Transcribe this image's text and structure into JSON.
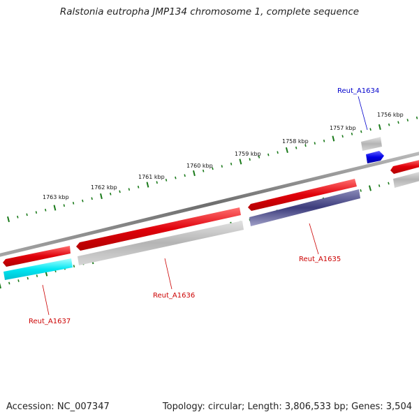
{
  "title": "Ralstonia eutropha JMP134 chromosome 1, complete sequence",
  "footer": {
    "accession": "Accession: NC_007347",
    "summary": "Topology: circular; Length: 3,806,533 bp; Genes: 3,504"
  },
  "scale_labels": [
    "1756 kbp",
    "1757 kbp",
    "1758 kbp",
    "1759 kbp",
    "1760 kbp",
    "1761 kbp",
    "1762 kbp",
    "1763 kbp"
  ],
  "gene_labels": [
    {
      "name": "reut-a1634-label",
      "text": "Reut_A1634",
      "color": "#0000cc"
    },
    {
      "name": "reut-a1635-label",
      "text": "Reut_A1635",
      "color": "#cc0000"
    },
    {
      "name": "reut-a1636-label",
      "text": "Reut_A1636",
      "color": "#cc0000"
    },
    {
      "name": "reut-a1637-label",
      "text": "Reut_A1637",
      "color": "#cc0000"
    }
  ],
  "colors": {
    "backbone": "#7a7a7a",
    "gene_red": "#e0000a",
    "gene_gray": "#b4b4b4",
    "gene_cyan": "#00e0f0",
    "gene_navy": "#3c3c7c",
    "gene_blue": "#0000e6",
    "tick_green": "#1a7a1a"
  }
}
